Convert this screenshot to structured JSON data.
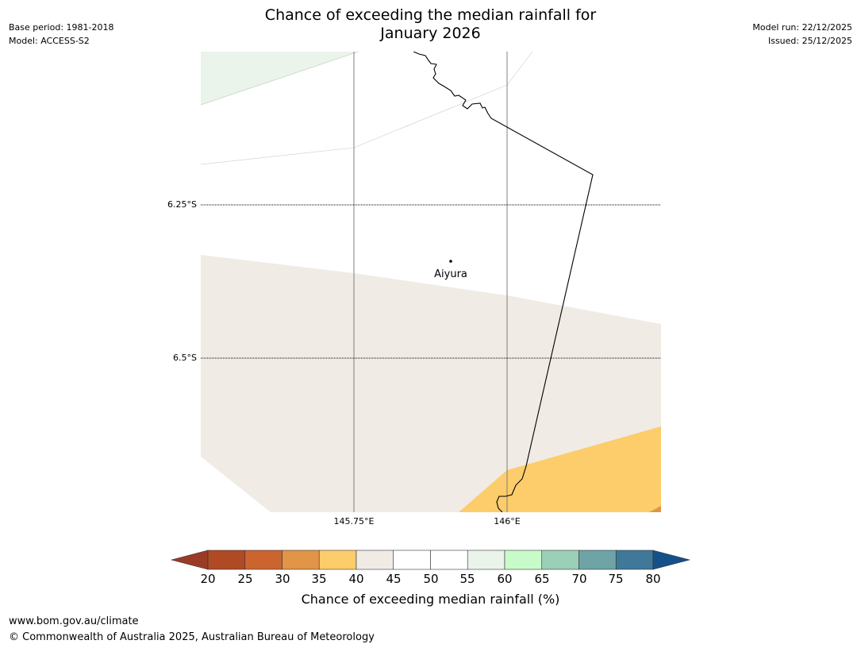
{
  "title": {
    "line1": "Chance of exceeding the median rainfall for",
    "line2": "January 2026"
  },
  "meta": {
    "base_period": "Base period: 1981-2018",
    "model": "Model: ACCESS-S2",
    "model_run": "Model run: 22/12/2025",
    "issued": "Issued: 25/12/2025"
  },
  "map": {
    "latitude_labels": [
      "6.25°S",
      "6.5°S"
    ],
    "longitude_labels": [
      "145.75°E",
      "146°E"
    ],
    "place": {
      "name": "Aiyura"
    }
  },
  "colorbar": {
    "label": "Chance of exceeding median rainfall (%)",
    "ticks": [
      "20",
      "25",
      "30",
      "35",
      "40",
      "45",
      "50",
      "55",
      "60",
      "65",
      "70",
      "75",
      "80"
    ],
    "colors": {
      "below_20": "#9a3b26",
      "c20_25": "#b04a25",
      "c25_30": "#cc6430",
      "c30_35": "#e29447",
      "c35_40": "#fdcc6b",
      "c40_45": "#f0ebe5",
      "c45_50": "#ffffff",
      "c50_55": "#ffffff",
      "c55_60": "#eaf4ea",
      "c60_65": "#c9fbca",
      "c65_70": "#9ccfb7",
      "c70_75": "#6ea4a6",
      "c75_80": "#3f7898",
      "above_80": "#14508a"
    }
  },
  "footer": {
    "url": "www.bom.gov.au/climate",
    "copyright": "© Commonwealth of Australia 2025, Australian Bureau of Meteorology"
  }
}
